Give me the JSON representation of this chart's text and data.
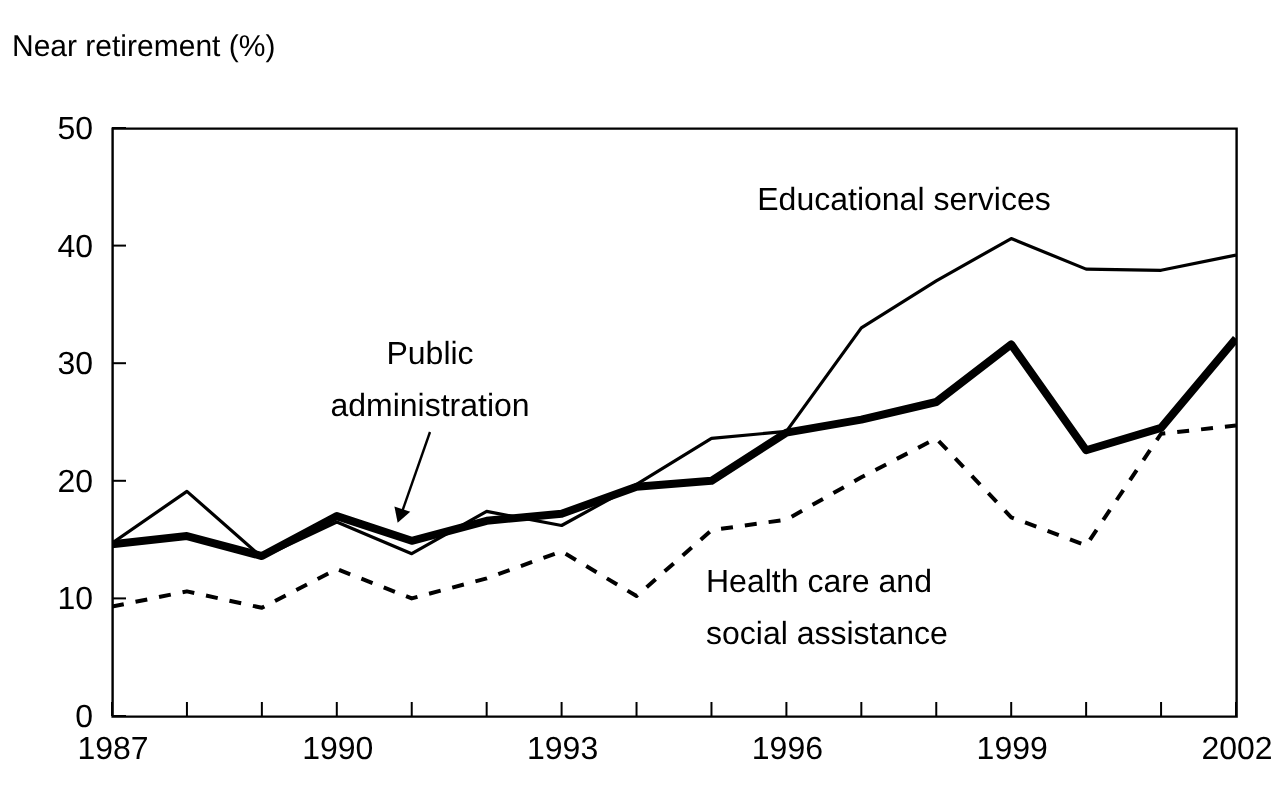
{
  "chart_data": {
    "type": "line",
    "ylabel": "Near retirement (%)",
    "x": [
      1987,
      1988,
      1989,
      1990,
      1991,
      1992,
      1993,
      1994,
      1995,
      1996,
      1997,
      1998,
      1999,
      2000,
      2001,
      2002
    ],
    "series": [
      {
        "name": "Educational services",
        "color": "#000000",
        "line_style": "solid",
        "values": [
          14.7,
          19.1,
          13.5,
          16.5,
          13.8,
          17.4,
          16.2,
          19.7,
          23.6,
          24.2,
          33.0,
          37.0,
          40.6,
          38.0,
          37.9,
          39.2
        ]
      },
      {
        "name": "Public administration",
        "color": "#000000",
        "line_style": "solid",
        "values": [
          14.6,
          15.3,
          13.6,
          17.0,
          14.9,
          16.6,
          17.2,
          19.5,
          20.0,
          24.1,
          25.2,
          26.7,
          31.6,
          22.6,
          24.5,
          32.1
        ]
      },
      {
        "name": "Health care and social assistance",
        "color": "#000000",
        "line_style": "dashed",
        "values": [
          9.3,
          10.6,
          9.2,
          12.5,
          10.0,
          11.7,
          14.0,
          10.2,
          15.8,
          16.7,
          20.3,
          23.6,
          16.9,
          14.5,
          24.0,
          24.7
        ]
      }
    ],
    "xlim": [
      1987,
      2002
    ],
    "xticks": [
      1987,
      {
        "value": 1988,
        "label": null
      },
      {
        "value": 1989,
        "label": null
      },
      1990,
      {
        "value": 1991,
        "label": null
      },
      {
        "value": 1992,
        "label": null
      },
      1993,
      {
        "value": 1994,
        "label": null
      },
      {
        "value": 1995,
        "label": null
      },
      1996,
      {
        "value": 1997,
        "label": null
      },
      {
        "value": 1998,
        "label": null
      },
      1999,
      {
        "value": 2000,
        "label": null
      },
      {
        "value": 2001,
        "label": null
      },
      2002
    ],
    "ylim": [
      0,
      50
    ],
    "yticks": [
      0,
      10,
      20,
      30,
      40,
      50
    ],
    "grid": false,
    "legend": false
  }
}
